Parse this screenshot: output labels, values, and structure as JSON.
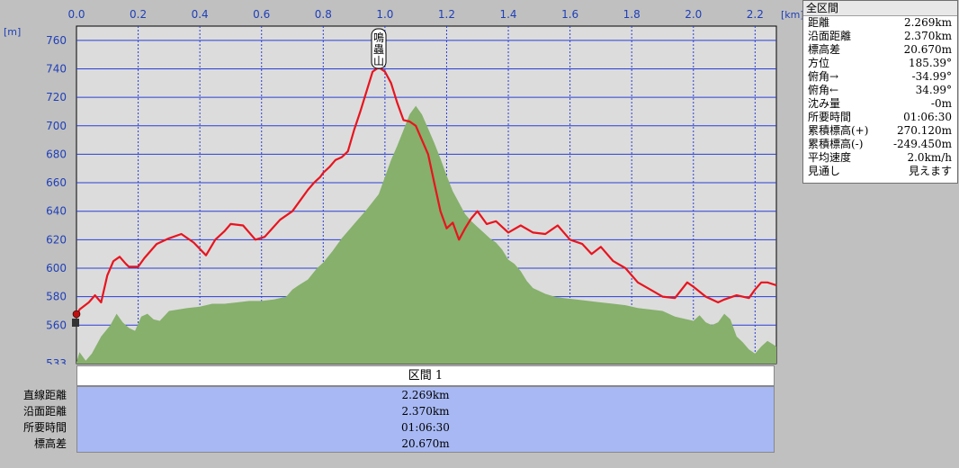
{
  "chart_data": {
    "type": "area",
    "x_unit_label": "[km]",
    "y_unit_label": "[m]",
    "xlim": [
      0,
      2.269
    ],
    "ylim": [
      533,
      770
    ],
    "x_ticks": [
      "0.0",
      "0.2",
      "0.4",
      "0.6",
      "0.8",
      "1.0",
      "1.2",
      "1.4",
      "1.6",
      "1.8",
      "2.0",
      "2.2"
    ],
    "y_ticks": [
      "760",
      "740",
      "720",
      "700",
      "680",
      "660",
      "640",
      "620",
      "600",
      "580",
      "560",
      "533"
    ],
    "peak_label": "鳴蟲山",
    "series": [
      {
        "kind": "line",
        "color": "#e8141e",
        "x": [
          0.0,
          0.01,
          0.04,
          0.06,
          0.08,
          0.1,
          0.12,
          0.14,
          0.16,
          0.17,
          0.2,
          0.22,
          0.26,
          0.3,
          0.34,
          0.38,
          0.42,
          0.45,
          0.48,
          0.5,
          0.54,
          0.58,
          0.61,
          0.66,
          0.7,
          0.72,
          0.75,
          0.77,
          0.79,
          0.8,
          0.82,
          0.84,
          0.86,
          0.88,
          0.9,
          0.92,
          0.96,
          0.98,
          1.0,
          1.02,
          1.04,
          1.06,
          1.08,
          1.1,
          1.12,
          1.14,
          1.16,
          1.18,
          1.2,
          1.22,
          1.24,
          1.26,
          1.28,
          1.3,
          1.33,
          1.36,
          1.4,
          1.44,
          1.48,
          1.52,
          1.56,
          1.6,
          1.64,
          1.67,
          1.7,
          1.74,
          1.78,
          1.82,
          1.86,
          1.9,
          1.94,
          1.98,
          2.0,
          2.04,
          2.08,
          2.1,
          2.14,
          2.18,
          2.2,
          2.22,
          2.24,
          2.269
        ],
        "y": [
          566,
          571,
          576,
          581,
          576,
          595,
          605,
          608,
          603,
          601,
          601,
          607,
          617,
          621,
          624,
          618,
          609,
          620,
          626,
          631,
          630,
          620,
          622,
          634,
          640,
          646,
          655,
          660,
          664,
          667,
          671,
          676,
          678,
          682,
          697,
          710,
          738,
          741,
          738,
          730,
          716,
          704,
          703,
          700,
          690,
          680,
          660,
          640,
          628,
          632,
          620,
          628,
          635,
          640,
          631,
          633,
          625,
          630,
          625,
          624,
          630,
          620,
          617,
          610,
          615,
          605,
          600,
          590,
          585,
          580,
          579,
          590,
          587,
          580,
          576,
          578,
          581,
          579,
          585,
          590,
          590,
          588
        ]
      },
      {
        "kind": "area",
        "color": "#86b06c",
        "x": [
          0.0,
          0.01,
          0.02,
          0.03,
          0.05,
          0.08,
          0.11,
          0.13,
          0.15,
          0.17,
          0.19,
          0.21,
          0.23,
          0.25,
          0.27,
          0.3,
          0.33,
          0.36,
          0.4,
          0.44,
          0.48,
          0.52,
          0.56,
          0.6,
          0.64,
          0.68,
          0.7,
          0.72,
          0.75,
          0.78,
          0.8,
          0.83,
          0.86,
          0.9,
          0.94,
          0.98,
          1.02,
          1.04,
          1.06,
          1.08,
          1.1,
          1.12,
          1.14,
          1.16,
          1.18,
          1.2,
          1.22,
          1.24,
          1.26,
          1.28,
          1.3,
          1.32,
          1.34,
          1.36,
          1.38,
          1.4,
          1.42,
          1.44,
          1.46,
          1.48,
          1.5,
          1.52,
          1.55,
          1.58,
          1.62,
          1.66,
          1.7,
          1.74,
          1.78,
          1.82,
          1.86,
          1.9,
          1.94,
          1.98,
          2.0,
          2.02,
          2.04,
          2.06,
          2.08,
          2.1,
          2.12,
          2.14,
          2.16,
          2.18,
          2.2,
          2.22,
          2.24,
          2.269
        ],
        "y": [
          534,
          541,
          538,
          535,
          540,
          552,
          560,
          568,
          562,
          558,
          556,
          566,
          568,
          564,
          563,
          570,
          571,
          572,
          573,
          575,
          575,
          576,
          577,
          577,
          578,
          580,
          585,
          588,
          592,
          600,
          604,
          612,
          621,
          631,
          641,
          652,
          676,
          686,
          697,
          708,
          714,
          708,
          698,
          688,
          677,
          665,
          654,
          646,
          638,
          633,
          629,
          625,
          621,
          618,
          613,
          606,
          603,
          598,
          591,
          586,
          584,
          582,
          580,
          579,
          578,
          577,
          576,
          575,
          574,
          572,
          571,
          570,
          566,
          564,
          563,
          567,
          562,
          560,
          562,
          568,
          564,
          552,
          548,
          543,
          540,
          545,
          549,
          545
        ]
      }
    ]
  },
  "summary": {
    "title": "全区間",
    "rows": [
      {
        "label": "距離",
        "value": "2.269km"
      },
      {
        "label": "沿面距離",
        "value": "2.370km"
      },
      {
        "label": "標高差",
        "value": "20.670m"
      },
      {
        "label": "方位",
        "value": "185.39°"
      },
      {
        "label": "俯角→",
        "value": "-34.99°"
      },
      {
        "label": "俯角←",
        "value": "34.99°"
      },
      {
        "label": "沈み量",
        "value": "-0m"
      },
      {
        "label": "所要時間",
        "value": "01:06:30"
      },
      {
        "label": "累積標高(+)",
        "value": "270.120m"
      },
      {
        "label": "累積標高(-)",
        "value": "-249.450m"
      },
      {
        "label": "平均速度",
        "value": "2.0km/h"
      },
      {
        "label": "見通し",
        "value": "見えます"
      }
    ]
  },
  "section": {
    "header": "区間 1",
    "rows": [
      {
        "label": "直線距離",
        "value": "2.269km"
      },
      {
        "label": "沿面距離",
        "value": "2.370km"
      },
      {
        "label": "所要時間",
        "value": "01:06:30"
      },
      {
        "label": "標高差",
        "value": "20.670m"
      }
    ]
  }
}
